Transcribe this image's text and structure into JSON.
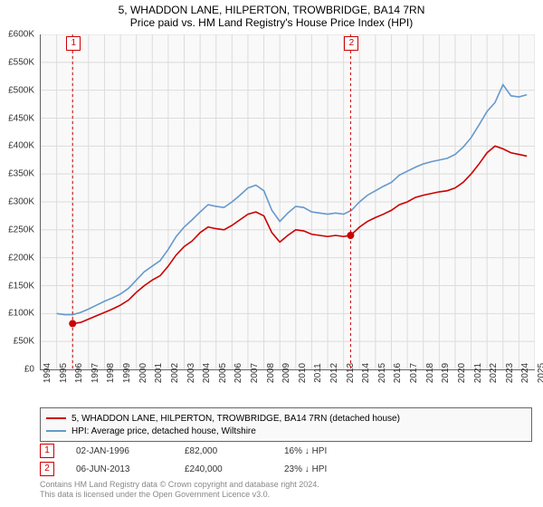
{
  "title_line1": "5, WHADDON LANE, HILPERTON, TROWBRIDGE, BA14 7RN",
  "title_line2": "Price paid vs. HM Land Registry's House Price Index (HPI)",
  "chart": {
    "type": "line",
    "background_color": "#f9f9f9",
    "grid_color": "#dcdcdc",
    "axis_color": "#666666",
    "y_axis": {
      "min": 0,
      "max": 600000,
      "tick_step": 50000,
      "labels": [
        "£0",
        "£50K",
        "£100K",
        "£150K",
        "£200K",
        "£250K",
        "£300K",
        "£350K",
        "£400K",
        "£450K",
        "£500K",
        "£550K",
        "£600K"
      ]
    },
    "x_axis": {
      "min": 1994,
      "max": 2025,
      "labels": [
        "1994",
        "1995",
        "1996",
        "1997",
        "1998",
        "1999",
        "2000",
        "2001",
        "2002",
        "2003",
        "2004",
        "2005",
        "2006",
        "2007",
        "2008",
        "2009",
        "2010",
        "2011",
        "2012",
        "2013",
        "2014",
        "2015",
        "2016",
        "2017",
        "2018",
        "2019",
        "2020",
        "2021",
        "2022",
        "2023",
        "2024",
        "2025"
      ]
    },
    "series_red": {
      "label": "5, WHADDON LANE, HILPERTON, TROWBRIDGE, BA14 7RN (detached house)",
      "color": "#cc0000",
      "line_width": 1.6,
      "points": [
        [
          1996.0,
          82000
        ],
        [
          1996.5,
          84000
        ],
        [
          1997,
          90000
        ],
        [
          1997.5,
          96000
        ],
        [
          1998,
          102000
        ],
        [
          1998.5,
          108000
        ],
        [
          1999,
          115000
        ],
        [
          1999.5,
          124000
        ],
        [
          2000,
          138000
        ],
        [
          2000.5,
          150000
        ],
        [
          2001,
          160000
        ],
        [
          2001.5,
          168000
        ],
        [
          2002,
          185000
        ],
        [
          2002.5,
          205000
        ],
        [
          2003,
          220000
        ],
        [
          2003.5,
          230000
        ],
        [
          2004,
          245000
        ],
        [
          2004.5,
          255000
        ],
        [
          2005,
          252000
        ],
        [
          2005.5,
          250000
        ],
        [
          2006,
          258000
        ],
        [
          2006.5,
          268000
        ],
        [
          2007,
          278000
        ],
        [
          2007.5,
          282000
        ],
        [
          2008,
          275000
        ],
        [
          2008.5,
          245000
        ],
        [
          2009,
          228000
        ],
        [
          2009.5,
          240000
        ],
        [
          2010,
          250000
        ],
        [
          2010.5,
          248000
        ],
        [
          2011,
          242000
        ],
        [
          2011.5,
          240000
        ],
        [
          2012,
          238000
        ],
        [
          2012.5,
          240000
        ],
        [
          2013,
          238000
        ],
        [
          2013.44,
          240000
        ],
        [
          2014,
          255000
        ],
        [
          2014.5,
          265000
        ],
        [
          2015,
          272000
        ],
        [
          2015.5,
          278000
        ],
        [
          2016,
          285000
        ],
        [
          2016.5,
          295000
        ],
        [
          2017,
          300000
        ],
        [
          2017.5,
          308000
        ],
        [
          2018,
          312000
        ],
        [
          2018.5,
          315000
        ],
        [
          2019,
          318000
        ],
        [
          2019.5,
          320000
        ],
        [
          2020,
          325000
        ],
        [
          2020.5,
          335000
        ],
        [
          2021,
          350000
        ],
        [
          2021.5,
          368000
        ],
        [
          2022,
          388000
        ],
        [
          2022.5,
          400000
        ],
        [
          2023,
          395000
        ],
        [
          2023.5,
          388000
        ],
        [
          2024,
          385000
        ],
        [
          2024.5,
          382000
        ]
      ]
    },
    "series_blue": {
      "label": "HPI: Average price, detached house, Wiltshire",
      "color": "#6699cc",
      "line_width": 1.6,
      "points": [
        [
          1995,
          100000
        ],
        [
          1995.5,
          98000
        ],
        [
          1996,
          98000
        ],
        [
          1996.5,
          102000
        ],
        [
          1997,
          108000
        ],
        [
          1997.5,
          115000
        ],
        [
          1998,
          122000
        ],
        [
          1998.5,
          128000
        ],
        [
          1999,
          135000
        ],
        [
          1999.5,
          145000
        ],
        [
          2000,
          160000
        ],
        [
          2000.5,
          175000
        ],
        [
          2001,
          185000
        ],
        [
          2001.5,
          195000
        ],
        [
          2002,
          215000
        ],
        [
          2002.5,
          238000
        ],
        [
          2003,
          255000
        ],
        [
          2003.5,
          268000
        ],
        [
          2004,
          282000
        ],
        [
          2004.5,
          295000
        ],
        [
          2005,
          292000
        ],
        [
          2005.5,
          290000
        ],
        [
          2006,
          300000
        ],
        [
          2006.5,
          312000
        ],
        [
          2007,
          325000
        ],
        [
          2007.5,
          330000
        ],
        [
          2008,
          320000
        ],
        [
          2008.5,
          285000
        ],
        [
          2009,
          265000
        ],
        [
          2009.5,
          280000
        ],
        [
          2010,
          292000
        ],
        [
          2010.5,
          290000
        ],
        [
          2011,
          282000
        ],
        [
          2011.5,
          280000
        ],
        [
          2012,
          278000
        ],
        [
          2012.5,
          280000
        ],
        [
          2013,
          278000
        ],
        [
          2013.5,
          285000
        ],
        [
          2014,
          300000
        ],
        [
          2014.5,
          312000
        ],
        [
          2015,
          320000
        ],
        [
          2015.5,
          328000
        ],
        [
          2016,
          335000
        ],
        [
          2016.5,
          348000
        ],
        [
          2017,
          355000
        ],
        [
          2017.5,
          362000
        ],
        [
          2018,
          368000
        ],
        [
          2018.5,
          372000
        ],
        [
          2019,
          375000
        ],
        [
          2019.5,
          378000
        ],
        [
          2020,
          385000
        ],
        [
          2020.5,
          398000
        ],
        [
          2021,
          415000
        ],
        [
          2021.5,
          438000
        ],
        [
          2022,
          462000
        ],
        [
          2022.5,
          478000
        ],
        [
          2023,
          510000
        ],
        [
          2023.5,
          490000
        ],
        [
          2024,
          488000
        ],
        [
          2024.5,
          492000
        ]
      ]
    },
    "markers": [
      {
        "n": "1",
        "year": 1996.0,
        "value": 82000,
        "label_y_top": true
      },
      {
        "n": "2",
        "year": 2013.44,
        "value": 240000,
        "label_y_top": true
      }
    ]
  },
  "legend": {
    "rows": [
      {
        "color": "#cc0000",
        "label": "5, WHADDON LANE, HILPERTON, TROWBRIDGE, BA14 7RN (detached house)"
      },
      {
        "color": "#6699cc",
        "label": "HPI: Average price, detached house, Wiltshire"
      }
    ]
  },
  "transactions": [
    {
      "n": "1",
      "date": "02-JAN-1996",
      "price": "£82,000",
      "pct": "16%",
      "arrow": "↓",
      "vs": "HPI"
    },
    {
      "n": "2",
      "date": "06-JUN-2013",
      "price": "£240,000",
      "pct": "23%",
      "arrow": "↓",
      "vs": "HPI"
    }
  ],
  "footer_line1": "Contains HM Land Registry data © Crown copyright and database right 2024.",
  "footer_line2": "This data is licensed under the Open Government Licence v3.0."
}
